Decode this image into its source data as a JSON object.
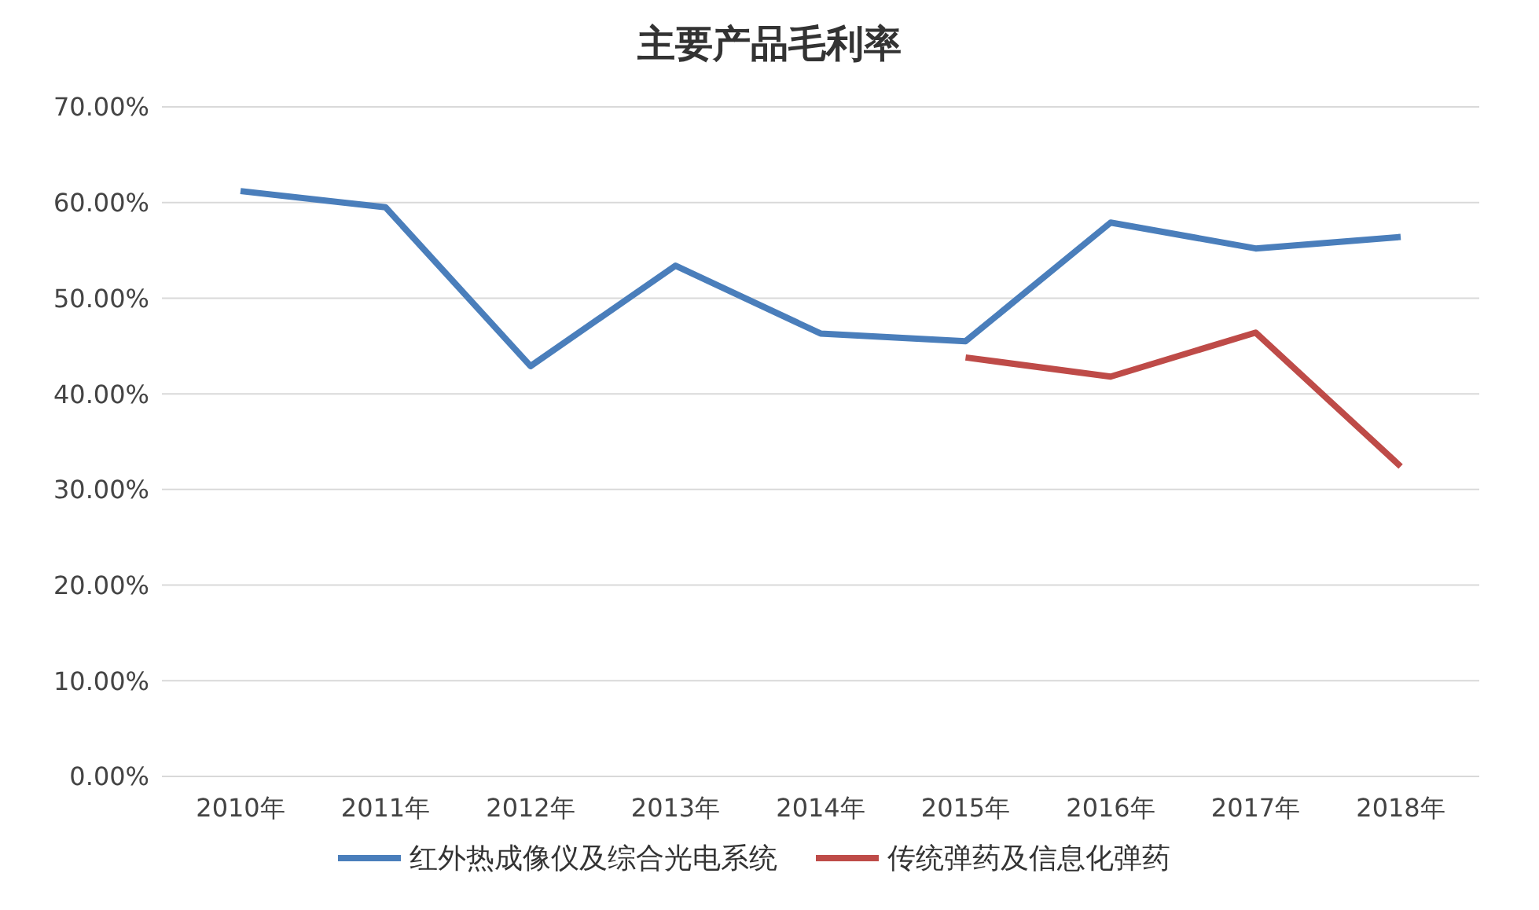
{
  "chart_data": {
    "type": "line",
    "title": "主要产品毛利率",
    "categories": [
      "2010年",
      "2011年",
      "2012年",
      "2013年",
      "2014年",
      "2015年",
      "2016年",
      "2017年",
      "2018年"
    ],
    "series": [
      {
        "name": "红外热成像仪及综合光电系统",
        "color": "#4a7ebb",
        "values": [
          61.2,
          59.5,
          42.9,
          53.4,
          46.3,
          45.5,
          57.9,
          55.2,
          56.4
        ]
      },
      {
        "name": "传统弹药及信息化弹药",
        "color": "#be4b48",
        "values": [
          null,
          null,
          null,
          null,
          null,
          43.8,
          41.8,
          46.4,
          32.4
        ]
      }
    ],
    "ylim": [
      0,
      70
    ],
    "yticks": [
      {
        "value": 0,
        "label": "0.00%"
      },
      {
        "value": 10,
        "label": "10.00%"
      },
      {
        "value": 20,
        "label": "20.00%"
      },
      {
        "value": 30,
        "label": "30.00%"
      },
      {
        "value": 40,
        "label": "40.00%"
      },
      {
        "value": 50,
        "label": "50.00%"
      },
      {
        "value": 60,
        "label": "60.00%"
      },
      {
        "value": 70,
        "label": "70.00%"
      }
    ],
    "grid": "y",
    "legend": "bottom",
    "marker": "none",
    "line_style": "solid"
  }
}
